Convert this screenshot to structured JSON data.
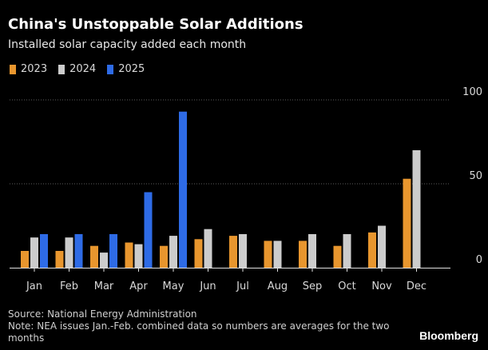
{
  "title": "China's Unstoppable Solar Additions",
  "subtitle": "Installed solar capacity added each month",
  "legend": [
    {
      "label": "2023",
      "color": "#e8962e"
    },
    {
      "label": "2024",
      "color": "#cccccc"
    },
    {
      "label": "2025",
      "color": "#2e6be6"
    }
  ],
  "chart_data": {
    "type": "bar",
    "title": "China's Unstoppable Solar Additions",
    "subtitle": "Installed solar capacity added each month",
    "xlabel": "",
    "ylabel": "",
    "ylim": [
      0,
      100
    ],
    "yticks": [
      0,
      50,
      100
    ],
    "categories": [
      "Jan",
      "Feb",
      "Mar",
      "Apr",
      "May",
      "Jun",
      "Jul",
      "Aug",
      "Sep",
      "Oct",
      "Nov",
      "Dec"
    ],
    "series": [
      {
        "name": "2023",
        "color": "#e8962e",
        "values": [
          10,
          10,
          13,
          15,
          13,
          17,
          19,
          16,
          16,
          13,
          21,
          53
        ]
      },
      {
        "name": "2024",
        "color": "#cccccc",
        "values": [
          18,
          18,
          9,
          14,
          19,
          23,
          20,
          16,
          20,
          20,
          25,
          70
        ]
      },
      {
        "name": "2025",
        "color": "#2e6be6",
        "values": [
          20,
          20,
          20,
          45,
          93,
          null,
          null,
          null,
          null,
          null,
          null,
          null
        ]
      }
    ]
  },
  "footer": {
    "source": "Source: National Energy Administration",
    "note": "Note: NEA issues Jan.-Feb. combined data so numbers are averages for the two months"
  },
  "brand": "Bloomberg"
}
